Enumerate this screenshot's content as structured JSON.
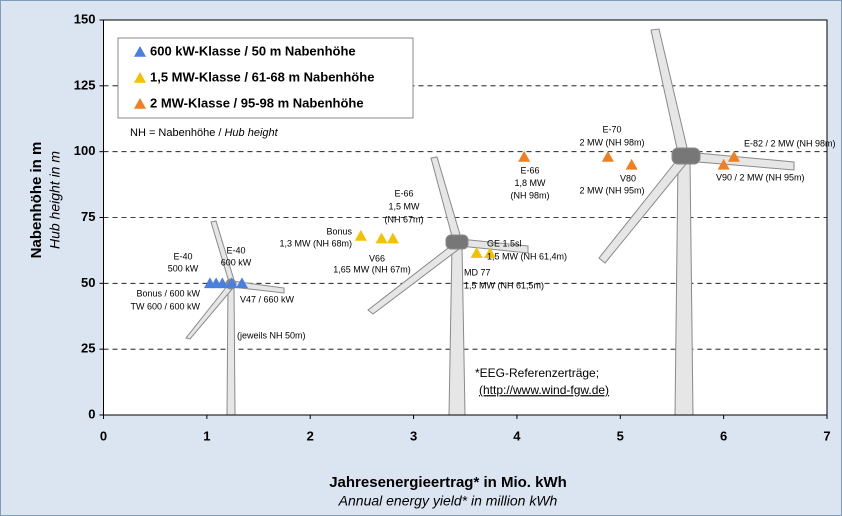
{
  "chart_data": {
    "type": "scatter",
    "xlabel": "Jahresenergieertrag* in Mio. kWh",
    "xlabel2": "Annual energy yield* in million kWh",
    "ylabel": "Nabenhöhe in m",
    "ylabel2": "Hub height in m",
    "xlim": [
      0,
      7
    ],
    "xticks": [
      0,
      1,
      2,
      3,
      4,
      5,
      6,
      7
    ],
    "ylim": [
      0,
      150
    ],
    "yticks": [
      0,
      25,
      50,
      75,
      100,
      125,
      150
    ],
    "grid": true,
    "series": [
      {
        "name": "600 kW-Klasse / 50 m Nabenhöhe",
        "color": "#4a7fe0",
        "x": [
          1.03,
          1.09,
          1.15,
          1.24,
          1.34
        ],
        "values": [
          50,
          50,
          50,
          50,
          50
        ]
      },
      {
        "name": "1,5 MW-Klasse / 61-68 m Nabenhöhe",
        "color": "#f2c200",
        "x": [
          2.49,
          2.69,
          2.8,
          3.61,
          3.74
        ],
        "values": [
          68,
          67,
          67,
          61.5,
          61.4
        ]
      },
      {
        "name": "2 MW-Klasse / 95-98 m Nabenhöhe",
        "color": "#f07f22",
        "x": [
          4.07,
          4.88,
          5.11,
          6.0,
          6.1
        ],
        "values": [
          98,
          98,
          95,
          95,
          98
        ]
      }
    ],
    "note": [
      "NH = Nabenhöhe / ",
      "Hub height"
    ],
    "footnote": [
      "*EEG-Referenzerträge;",
      "(http://www.wind-fgw.de)"
    ],
    "annotations": [
      [
        "E-40",
        "500 kW"
      ],
      [
        "E-40",
        "600 kW"
      ],
      [
        "Bonus / 600 kW",
        "TW 600 / 600 kW"
      ],
      [
        "V47 / 660 kW"
      ],
      [
        "(jeweils NH 50m)"
      ],
      [
        "Bonus",
        "1,3 MW (NH 68m)"
      ],
      [
        "E-66",
        "1,5 MW",
        "(NH 67m)"
      ],
      [
        "V66"
      ],
      [
        "1,65 MW (NH 67m)"
      ],
      [
        "GE 1.5sl",
        "1,5 MW (NH 61,4m)"
      ],
      [
        "MD 77",
        "1,5 MW (NH 61,5m)"
      ],
      [
        "E-66",
        "1,8 MW",
        "(NH 98m)"
      ],
      [
        "E-70",
        "2 MW (NH 98m)"
      ],
      [
        "V80"
      ],
      [
        "2 MW (NH 95m)"
      ],
      [
        "E-82 / 2 MW (NH 98m)"
      ],
      [
        "V90 / 2 MW (NH 95m)"
      ]
    ]
  }
}
